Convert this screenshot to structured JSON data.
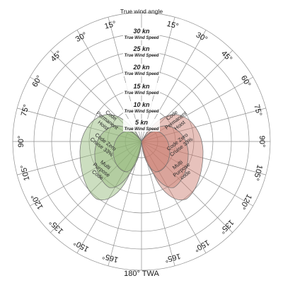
{
  "chart_data": {
    "type": "polar",
    "title": "True wind angle",
    "bottom_label": "180° TWA",
    "angle_labels_left": [
      "15°",
      "30°",
      "45°",
      "60°",
      "75°",
      "90°",
      "105°",
      "120°",
      "135°",
      "150°",
      "165°"
    ],
    "angle_labels_right": [
      "15°",
      "30°",
      "45°",
      "60°",
      "75°",
      "90°",
      "105°",
      "120°",
      "135°",
      "150°",
      "165°"
    ],
    "angle_values": [
      15,
      30,
      45,
      60,
      75,
      90,
      105,
      120,
      135,
      150,
      165
    ],
    "rings": [
      {
        "kn": "5 kn",
        "sub": "True Wind Speed",
        "value": 5
      },
      {
        "kn": "10 kn",
        "sub": "True Wind Speed",
        "value": 10
      },
      {
        "kn": "15 kn",
        "sub": "True Wind Speed",
        "value": 15
      },
      {
        "kn": "20 kn",
        "sub": "True Wind Speed",
        "value": 20
      },
      {
        "kn": "25 kn",
        "sub": "True Wind Speed",
        "value": 25
      },
      {
        "kn": "30 kn",
        "sub": "True Wind Speed",
        "value": 30
      }
    ],
    "zones": [
      {
        "side": "port",
        "color": "#8fb574",
        "regions": [
          {
            "name": "Code Permanent Hoist",
            "lines": [
              "Code",
              "Permanent",
              "Hoist"
            ]
          },
          {
            "name": "Code Zero Cruise 33%",
            "lines": [
              "Code Zero",
              "Cruise 33%"
            ]
          },
          {
            "name": "Multi Purpose Code",
            "lines": [
              "Multi",
              "Purpose",
              "Code"
            ]
          }
        ]
      },
      {
        "side": "starboard",
        "color": "#c9786a",
        "regions": [
          {
            "name": "Code Permanent Hoist",
            "lines": [
              "Code",
              "Permanent",
              "Hoist"
            ]
          },
          {
            "name": "Code Zero Cruise 33%",
            "lines": [
              "Code Zero",
              "Cruise 33%"
            ]
          },
          {
            "name": "Multi Purpose code",
            "lines": [
              "Multi",
              "Purpose",
              "code"
            ]
          }
        ]
      }
    ]
  }
}
